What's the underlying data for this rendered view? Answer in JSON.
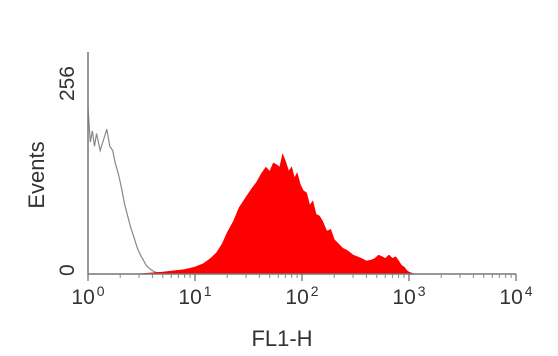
{
  "chart_data": {
    "type": "area",
    "xlabel": "FL1-H",
    "ylabel": "Events",
    "x_scale": "log",
    "xlim": [
      1,
      10000
    ],
    "ylim": [
      0,
      256
    ],
    "x_ticks": [
      {
        "value": 1,
        "base": "10",
        "exp": "0"
      },
      {
        "value": 10,
        "base": "10",
        "exp": "1"
      },
      {
        "value": 100,
        "base": "10",
        "exp": "2"
      },
      {
        "value": 1000,
        "base": "10",
        "exp": "3"
      },
      {
        "value": 10000,
        "base": "10",
        "exp": "4"
      }
    ],
    "y_ticks": [
      {
        "value": 0,
        "label": "0"
      },
      {
        "value": 256,
        "label": "256"
      }
    ],
    "grid": false,
    "legend": "none",
    "series": [
      {
        "style": "outline",
        "color": "#888888",
        "x": [
          1.0,
          1.05,
          1.1,
          1.15,
          1.2,
          1.3,
          1.4,
          1.5,
          1.6,
          1.7,
          1.8,
          1.9,
          2.0,
          2.1,
          2.2,
          2.35,
          2.5,
          2.7,
          2.9,
          3.1,
          3.3,
          3.5,
          3.8,
          4.1,
          4.5,
          5.0
        ],
        "y": [
          195,
          155,
          168,
          150,
          165,
          145,
          158,
          170,
          150,
          145,
          130,
          120,
          108,
          95,
          82,
          68,
          55,
          42,
          30,
          22,
          16,
          10,
          6,
          3,
          1,
          0
        ]
      },
      {
        "style": "filled",
        "color": "#ff0000",
        "x": [
          3.0,
          5.0,
          8.0,
          10.0,
          12.0,
          14.0,
          16.0,
          18.0,
          20.0,
          23.0,
          26.0,
          30.0,
          34.0,
          38.0,
          42.0,
          46.0,
          50.0,
          54.0,
          58.0,
          62.0,
          66.0,
          70.0,
          75.0,
          80.0,
          85.0,
          90.0,
          96.0,
          102.0,
          110.0,
          118.0,
          126.0,
          135.0,
          145.0,
          155.0,
          170.0,
          185.0,
          200.0,
          220.0,
          240.0,
          260.0,
          280.0,
          300.0,
          330.0,
          360.0,
          400.0,
          440.0,
          480.0,
          520.0,
          560.0,
          600.0,
          650.0,
          700.0,
          750.0,
          800.0,
          850.0,
          900.0,
          950.0,
          1000.0,
          1050.0,
          1100.0
        ],
        "y": [
          0,
          2,
          5,
          8,
          12,
          18,
          25,
          35,
          48,
          62,
          78,
          90,
          100,
          108,
          118,
          125,
          120,
          130,
          128,
          125,
          140,
          132,
          120,
          125,
          112,
          118,
          105,
          98,
          95,
          80,
          85,
          70,
          68,
          62,
          50,
          52,
          40,
          35,
          30,
          28,
          25,
          22,
          20,
          18,
          15,
          16,
          18,
          22,
          20,
          18,
          22,
          18,
          20,
          15,
          10,
          8,
          4,
          2,
          1,
          0
        ]
      }
    ]
  }
}
